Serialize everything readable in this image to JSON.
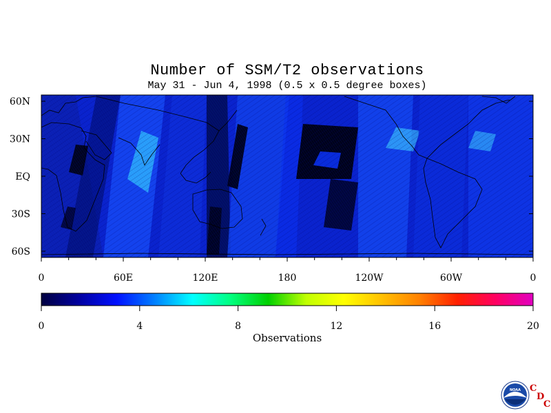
{
  "title": "Number of SSM/T2 observations",
  "subtitle": "May 31 - Jun 4, 1998 (0.5 x 0.5 degree boxes)",
  "map": {
    "lat_range": [
      -65,
      65
    ],
    "lon_range": [
      0,
      360
    ],
    "lat_ticks": [
      {
        "value": 60,
        "label": "60N"
      },
      {
        "value": 30,
        "label": "30N"
      },
      {
        "value": 0,
        "label": "EQ"
      },
      {
        "value": -30,
        "label": "30S"
      },
      {
        "value": -60,
        "label": "60S"
      }
    ],
    "lon_ticks": [
      {
        "value": 0,
        "label": "0"
      },
      {
        "value": 60,
        "label": "60E"
      },
      {
        "value": 120,
        "label": "120E"
      },
      {
        "value": 180,
        "label": "180"
      },
      {
        "value": 240,
        "label": "120W"
      },
      {
        "value": 300,
        "label": "60W"
      },
      {
        "value": 360,
        "label": "0"
      }
    ]
  },
  "colorbar": {
    "title": "Observations",
    "min": 0,
    "max": 20,
    "ticks": [
      {
        "value": 0,
        "label": "0"
      },
      {
        "value": 4,
        "label": "4"
      },
      {
        "value": 8,
        "label": "8"
      },
      {
        "value": 12,
        "label": "12"
      },
      {
        "value": 16,
        "label": "16"
      },
      {
        "value": 20,
        "label": "20"
      }
    ],
    "stops": [
      "#000040",
      "#0000a0",
      "#0010ff",
      "#0080ff",
      "#00ffff",
      "#00ff80",
      "#00d000",
      "#c0ff00",
      "#ffff00",
      "#ffc000",
      "#ff8000",
      "#ff2000",
      "#ff0060",
      "#e000c0"
    ]
  },
  "logo": {
    "text": "NOAA",
    "letters": [
      "C",
      "D",
      "C"
    ]
  }
}
